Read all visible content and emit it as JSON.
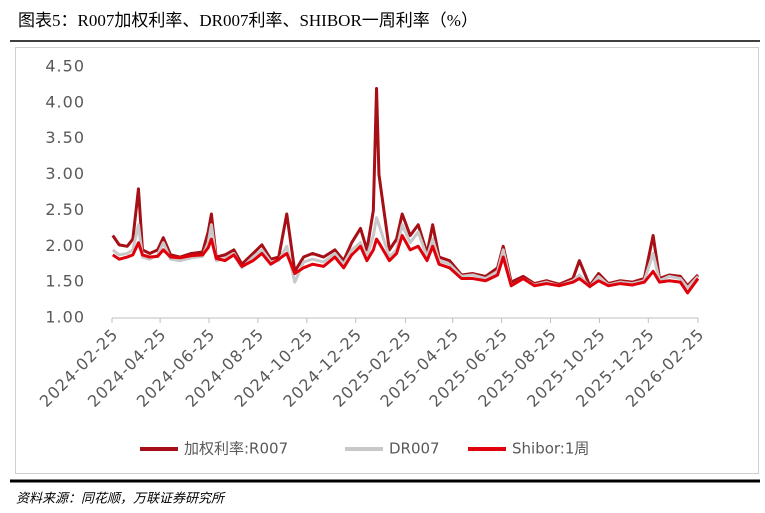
{
  "chart_data": {
    "type": "line",
    "title": "图表5：R007加权利率、DR007利率、SHIBOR一周利率（%）",
    "source": "资料来源：同花顺，万联证券研究所",
    "x": [
      "2024-02-26",
      "2024-03-05",
      "2024-03-15",
      "2024-03-22",
      "2024-03-29",
      "2024-04-03",
      "2024-04-12",
      "2024-04-22",
      "2024-04-29",
      "2024-05-08",
      "2024-05-20",
      "2024-06-03",
      "2024-06-17",
      "2024-06-24",
      "2024-06-28",
      "2024-07-04",
      "2024-07-15",
      "2024-07-26",
      "2024-08-05",
      "2024-08-19",
      "2024-08-30",
      "2024-09-10",
      "2024-09-20",
      "2024-09-30",
      "2024-10-10",
      "2024-10-21",
      "2024-11-01",
      "2024-11-15",
      "2024-11-29",
      "2024-12-10",
      "2024-12-20",
      "2024-12-31",
      "2025-01-08",
      "2025-01-16",
      "2025-01-20",
      "2025-01-23",
      "2025-02-05",
      "2025-02-14",
      "2025-02-21",
      "2025-03-03",
      "2025-03-13",
      "2025-03-24",
      "2025-03-31",
      "2025-04-08",
      "2025-04-21",
      "2025-05-06",
      "2025-05-20",
      "2025-06-05",
      "2025-06-20",
      "2025-06-27",
      "2025-07-07",
      "2025-07-22",
      "2025-08-05",
      "2025-08-20",
      "2025-09-05",
      "2025-09-22",
      "2025-09-30",
      "2025-10-13",
      "2025-10-24",
      "2025-11-05",
      "2025-11-20",
      "2025-12-05",
      "2025-12-20",
      "2025-12-31",
      "2026-01-08",
      "2026-01-20",
      "2026-02-03",
      "2026-02-12",
      "2026-02-25"
    ],
    "series": [
      {
        "name": "加权利率:R007",
        "color": "#a50f15",
        "values": [
          2.15,
          2.02,
          2.0,
          2.1,
          2.8,
          1.95,
          1.9,
          1.95,
          2.12,
          1.88,
          1.85,
          1.9,
          1.92,
          2.2,
          2.45,
          1.85,
          1.88,
          1.95,
          1.75,
          1.9,
          2.02,
          1.82,
          1.85,
          2.45,
          1.65,
          1.85,
          1.9,
          1.85,
          1.95,
          1.8,
          2.05,
          2.25,
          1.95,
          2.5,
          4.2,
          3.0,
          1.95,
          2.1,
          2.45,
          2.15,
          2.3,
          1.9,
          2.3,
          1.85,
          1.8,
          1.6,
          1.62,
          1.58,
          1.7,
          2.0,
          1.5,
          1.58,
          1.48,
          1.52,
          1.47,
          1.55,
          1.8,
          1.45,
          1.62,
          1.48,
          1.52,
          1.5,
          1.55,
          2.15,
          1.55,
          1.6,
          1.58,
          1.45,
          1.6
        ]
      },
      {
        "name": "DR007",
        "color": "#c8c8c8",
        "values": [
          1.95,
          1.88,
          1.9,
          1.95,
          2.3,
          1.85,
          1.82,
          1.88,
          2.05,
          1.82,
          1.8,
          1.84,
          1.86,
          2.05,
          2.3,
          1.8,
          1.83,
          1.9,
          1.7,
          1.85,
          1.95,
          1.78,
          1.8,
          2.0,
          1.5,
          1.78,
          1.82,
          1.78,
          1.9,
          1.75,
          1.95,
          2.05,
          1.85,
          2.15,
          2.4,
          2.3,
          1.85,
          1.95,
          2.3,
          2.05,
          2.2,
          1.85,
          2.1,
          1.8,
          1.75,
          1.58,
          1.6,
          1.55,
          1.65,
          1.95,
          1.45,
          1.55,
          1.46,
          1.5,
          1.45,
          1.52,
          1.6,
          1.43,
          1.58,
          1.46,
          1.5,
          1.48,
          1.52,
          1.9,
          1.52,
          1.58,
          1.55,
          1.42,
          1.58
        ]
      },
      {
        "name": "Shibor:1周",
        "color": "#e0000b",
        "values": [
          1.88,
          1.82,
          1.85,
          1.88,
          2.05,
          1.88,
          1.85,
          1.86,
          1.95,
          1.85,
          1.84,
          1.87,
          1.88,
          1.98,
          2.1,
          1.83,
          1.8,
          1.88,
          1.72,
          1.8,
          1.9,
          1.75,
          1.82,
          1.9,
          1.62,
          1.7,
          1.75,
          1.72,
          1.85,
          1.7,
          1.88,
          2.0,
          1.8,
          1.95,
          2.1,
          2.05,
          1.8,
          1.9,
          2.15,
          1.95,
          2.0,
          1.8,
          2.0,
          1.75,
          1.7,
          1.55,
          1.55,
          1.52,
          1.6,
          1.85,
          1.45,
          1.55,
          1.45,
          1.48,
          1.45,
          1.5,
          1.55,
          1.44,
          1.52,
          1.45,
          1.48,
          1.46,
          1.5,
          1.65,
          1.5,
          1.52,
          1.5,
          1.35,
          1.55
        ]
      }
    ],
    "xlim": [
      "2024-02-25",
      "2026-02-25"
    ],
    "xticks": [
      "2024-02-25",
      "2024-04-25",
      "2024-06-25",
      "2024-08-25",
      "2024-10-25",
      "2024-12-25",
      "2025-02-25",
      "2025-04-25",
      "2025-06-25",
      "2025-08-25",
      "2025-10-25",
      "2025-12-25",
      "2026-02-25"
    ],
    "ylim": [
      1,
      4.5
    ],
    "yticks": [
      {
        "value": 1,
        "label": "1.00"
      },
      {
        "value": 1.5,
        "label": "1.50"
      },
      {
        "value": 2,
        "label": "2.00"
      },
      {
        "value": 2.5,
        "label": "2.50"
      },
      {
        "value": 3,
        "label": "3.00"
      },
      {
        "value": 3.5,
        "label": "3.50"
      },
      {
        "value": 4,
        "label": "4.00"
      },
      {
        "value": 4.5,
        "label": "4.50"
      }
    ],
    "grid": false,
    "legend": "bottom"
  }
}
